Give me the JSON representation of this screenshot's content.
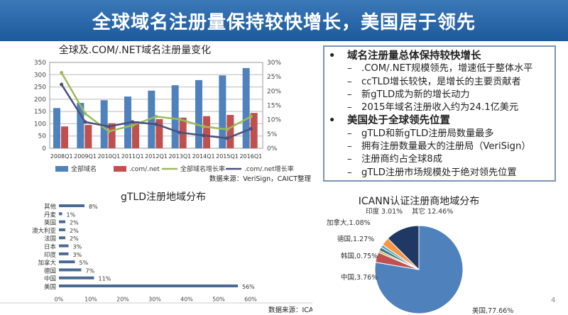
{
  "title": "全球域名注册量保持较快增长，美国居于领先",
  "page_number": "4",
  "bullets": [
    {
      "text": "域名注册量总体保持较快增长",
      "sub": [
        ".COM/.NET规模领先，增速低于整体水平",
        "ccTLD增长较快，是增长的主要贡献者",
        "新gTLD成为新的增长动力",
        "2015年域名注册收入约为24.1亿美元"
      ]
    },
    {
      "text": "美国处于全球领先位置",
      "sub": [
        "gTLD和新gTLD注册局数量最多",
        "拥有注册数量最大的注册局（VeriSign）",
        "注册商约占全球8成",
        "gTLD注册市场规模处于绝对领先位置"
      ]
    }
  ],
  "bullet_marker": "•",
  "sub_marker": "–",
  "source1": "数据来源：VeriSign，CAICT整理",
  "source2": "数据来源：ICANN，CAICT整理",
  "chart_data": [
    {
      "type": "bar",
      "title": "全球及.COM/.NET域名注册量变化",
      "categories": [
        "2008Q1",
        "2009Q1",
        "2010Q1",
        "2011Q1",
        "2012Q1",
        "2013Q1",
        "2014Q1",
        "2015Q1",
        "2016Q1"
      ],
      "ylim": [
        0,
        350
      ],
      "yticks": [
        "0",
        "50",
        "100",
        "150",
        "200",
        "250",
        "300",
        "350"
      ],
      "y2lim": [
        0,
        30
      ],
      "y2ticks": [
        "0%",
        "5%",
        "10%",
        "15%",
        "20%",
        "25%",
        "30%"
      ],
      "grid": true,
      "legend": "bottom",
      "series": [
        {
          "name": "全部域名",
          "type": "bar",
          "color": "#4f81bd",
          "values": [
            164,
            185,
            196,
            211,
            235,
            257,
            278,
            297,
            327
          ]
        },
        {
          "name": ".com/.net",
          "type": "bar",
          "color": "#c0504d",
          "values": [
            89,
            95,
            102,
            110,
            119,
            125,
            131,
            136,
            144
          ]
        },
        {
          "name": "全部域名增长率",
          "type": "line",
          "axis": "right",
          "color": "#9bbb59",
          "values": [
            26.4,
            12.1,
            5.9,
            8.0,
            11.1,
            10.1,
            7.6,
            6.6,
            11.1
          ]
        },
        {
          "name": ".com/.net增长率",
          "type": "line",
          "axis": "right",
          "color": "#4b4f7a",
          "values": [
            22.3,
            9.2,
            7.6,
            9.2,
            8.4,
            5.5,
            4.5,
            3.5,
            6.8
          ]
        }
      ]
    },
    {
      "type": "bar",
      "orientation": "horizontal",
      "title": "gTLD注册地域分布",
      "categories": [
        "其他",
        "丹麦",
        "英国",
        "澳大利亚",
        "法国",
        "日本",
        "印度",
        "加拿大",
        "德国",
        "中国",
        "美国"
      ],
      "values": [
        8,
        1,
        2,
        2,
        2,
        3,
        3,
        5,
        7,
        11,
        56
      ],
      "labels": [
        "8%",
        "1%",
        "2%",
        "2%",
        "2%",
        "3%",
        "3%",
        "5%",
        "7%",
        "11%",
        "56%"
      ],
      "xlim": [
        0,
        60
      ],
      "xticks": [
        "0%",
        "10%",
        "20%",
        "30%",
        "40%",
        "50%",
        "60%"
      ],
      "color": "#4a6a93"
    },
    {
      "type": "pie",
      "title": "ICANN认证注册商地域分布",
      "slices": [
        {
          "label": "美国,77.66%",
          "value": 77.66,
          "color": "#4f81bd"
        },
        {
          "label": "中国,3.76%",
          "value": 3.76,
          "color": "#c0504d"
        },
        {
          "label": "韩国,0.75%",
          "value": 0.75,
          "color": "#9bbb59"
        },
        {
          "label": "德国,1.27%",
          "value": 1.27,
          "color": "#4b6e7a"
        },
        {
          "label": "加拿大,1.08%",
          "value": 1.08,
          "color": "#4bacc6"
        },
        {
          "label": "印度 3.01%",
          "value": 3.01,
          "color": "#f79646"
        },
        {
          "label": "其它 12.46%",
          "value": 12.46,
          "color": "#1f3864"
        }
      ]
    }
  ]
}
